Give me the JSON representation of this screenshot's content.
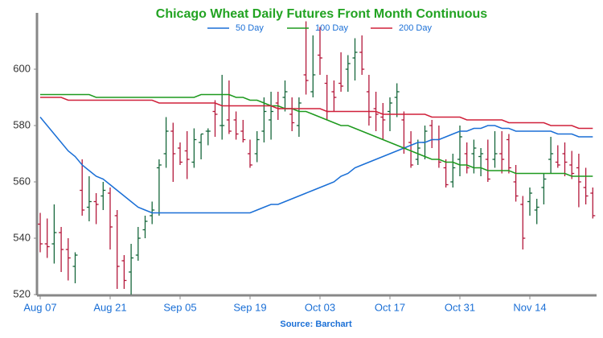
{
  "chart_data": {
    "type": "ohlc",
    "title": "Chicago Wheat Daily Futures Front Month Continuous",
    "source": "Source: Barchart",
    "categories": [
      "Aug 07",
      null,
      null,
      null,
      null,
      null,
      null,
      null,
      null,
      null,
      "Aug 21",
      null,
      null,
      null,
      null,
      null,
      null,
      null,
      null,
      null,
      "Sep 05",
      null,
      null,
      null,
      null,
      null,
      null,
      null,
      null,
      null,
      "Sep 19",
      null,
      null,
      null,
      null,
      null,
      null,
      null,
      null,
      null,
      "Oct 03",
      null,
      null,
      null,
      null,
      null,
      null,
      null,
      null,
      null,
      "Oct 17",
      null,
      null,
      null,
      null,
      null,
      null,
      null,
      null,
      null,
      "Oct 31",
      null,
      null,
      null,
      null,
      null,
      null,
      null,
      null,
      null,
      "Nov 14",
      null,
      null,
      null,
      null,
      null,
      null,
      null,
      null,
      null
    ],
    "open": [
      545,
      538,
      538,
      542,
      536,
      530,
      557,
      551,
      553,
      555,
      556,
      548,
      532,
      528,
      534,
      543,
      548,
      565,
      570,
      578,
      572,
      571,
      567,
      574,
      578,
      585,
      580,
      582,
      582,
      578,
      570,
      570,
      578,
      582,
      588,
      590,
      584,
      580,
      598,
      592,
      605,
      595,
      592,
      595,
      600,
      604,
      606,
      592,
      586,
      583,
      585,
      590,
      582,
      574,
      568,
      574,
      580,
      575,
      565,
      560,
      568,
      570,
      570,
      569,
      568,
      568,
      570,
      575,
      560,
      552,
      553,
      550,
      558,
      568,
      567,
      570,
      566,
      565,
      558,
      556
    ],
    "high": [
      549,
      547,
      552,
      544,
      540,
      535,
      568,
      562,
      556,
      560,
      558,
      550,
      534,
      538,
      544,
      548,
      553,
      568,
      583,
      581,
      574,
      578,
      579,
      577,
      579,
      589,
      598,
      596,
      585,
      582,
      575,
      578,
      590,
      592,
      592,
      596,
      590,
      590,
      617,
      612,
      615,
      598,
      596,
      606,
      605,
      611,
      612,
      598,
      592,
      588,
      590,
      595,
      585,
      578,
      575,
      580,
      582,
      580,
      568,
      570,
      580,
      574,
      575,
      572,
      575,
      578,
      578,
      577,
      566,
      555,
      558,
      554,
      563,
      576,
      573,
      574,
      571,
      570,
      565,
      558
    ],
    "low": [
      535,
      533,
      531,
      528,
      525,
      524,
      548,
      546,
      545,
      550,
      536,
      522,
      522,
      520,
      532,
      540,
      545,
      548,
      565,
      560,
      566,
      561,
      565,
      568,
      573,
      576,
      575,
      577,
      575,
      574,
      565,
      567,
      574,
      575,
      582,
      585,
      578,
      576,
      591,
      590,
      598,
      582,
      585,
      592,
      592,
      596,
      598,
      580,
      578,
      575,
      578,
      583,
      570,
      565,
      566,
      568,
      572,
      565,
      558,
      558,
      562,
      563,
      563,
      562,
      560,
      565,
      563,
      563,
      553,
      536,
      548,
      545,
      552,
      563,
      565,
      562,
      561,
      551,
      552,
      547
    ],
    "close": [
      538,
      537,
      542,
      536,
      533,
      534,
      550,
      553,
      552,
      557,
      544,
      530,
      525,
      533,
      540,
      546,
      550,
      566,
      578,
      570,
      567,
      568,
      575,
      577,
      578,
      584,
      580,
      578,
      577,
      575,
      566,
      575,
      585,
      585,
      586,
      592,
      581,
      588,
      596,
      598,
      604,
      585,
      590,
      594,
      602,
      606,
      600,
      583,
      584,
      582,
      588,
      592,
      572,
      566,
      572,
      578,
      575,
      567,
      559,
      565,
      576,
      565,
      572,
      570,
      561,
      570,
      568,
      565,
      555,
      540,
      556,
      551,
      561,
      570,
      566,
      567,
      563,
      560,
      555,
      548
    ],
    "colors": {
      "up": "#15663a",
      "down": "#b3173a"
    },
    "moving_averages": [
      {
        "name": "50 Day",
        "color": "#1a6fd6",
        "values": [
          583,
          580,
          577,
          574,
          571,
          569,
          566,
          564,
          562,
          561,
          559,
          557,
          555,
          553,
          551,
          550,
          549,
          549,
          549,
          549,
          549,
          549,
          549,
          549,
          549,
          549,
          549,
          549,
          549,
          549,
          549,
          550,
          551,
          552,
          552,
          553,
          554,
          555,
          556,
          557,
          558,
          559,
          560,
          562,
          563,
          565,
          566,
          567,
          568,
          569,
          570,
          571,
          572,
          573,
          574,
          574,
          575,
          575,
          576,
          577,
          578,
          578,
          579,
          579,
          580,
          580,
          579,
          579,
          578,
          578,
          578,
          578,
          578,
          578,
          577,
          577,
          577,
          576,
          576,
          576
        ]
      },
      {
        "name": "100 Day",
        "color": "#1e9a1e",
        "values": [
          591,
          591,
          591,
          591,
          591,
          591,
          591,
          591,
          590,
          590,
          590,
          590,
          590,
          590,
          590,
          590,
          590,
          590,
          590,
          590,
          590,
          590,
          590,
          591,
          591,
          591,
          591,
          591,
          590,
          590,
          589,
          589,
          588,
          587,
          587,
          586,
          586,
          585,
          585,
          584,
          583,
          582,
          581,
          580,
          580,
          579,
          578,
          577,
          576,
          575,
          574,
          573,
          572,
          571,
          570,
          569,
          568,
          568,
          567,
          567,
          566,
          566,
          565,
          565,
          564,
          564,
          564,
          564,
          563,
          563,
          563,
          563,
          563,
          563,
          563,
          563,
          562,
          562,
          562,
          562
        ]
      },
      {
        "name": "200 Day",
        "color": "#d0203a",
        "values": [
          590,
          590,
          590,
          590,
          589,
          589,
          589,
          589,
          589,
          589,
          589,
          589,
          589,
          589,
          589,
          589,
          589,
          588,
          588,
          588,
          588,
          588,
          588,
          588,
          588,
          588,
          587,
          587,
          587,
          587,
          587,
          587,
          587,
          587,
          586,
          586,
          586,
          586,
          586,
          586,
          586,
          585,
          585,
          585,
          585,
          585,
          585,
          585,
          585,
          584,
          584,
          584,
          584,
          584,
          584,
          584,
          583,
          583,
          583,
          583,
          583,
          582,
          582,
          582,
          582,
          582,
          582,
          581,
          581,
          581,
          581,
          581,
          581,
          580,
          580,
          580,
          580,
          579,
          579,
          579
        ]
      }
    ],
    "ylim": [
      520,
      620
    ],
    "yticks": [
      520,
      540,
      560,
      580,
      600
    ]
  }
}
